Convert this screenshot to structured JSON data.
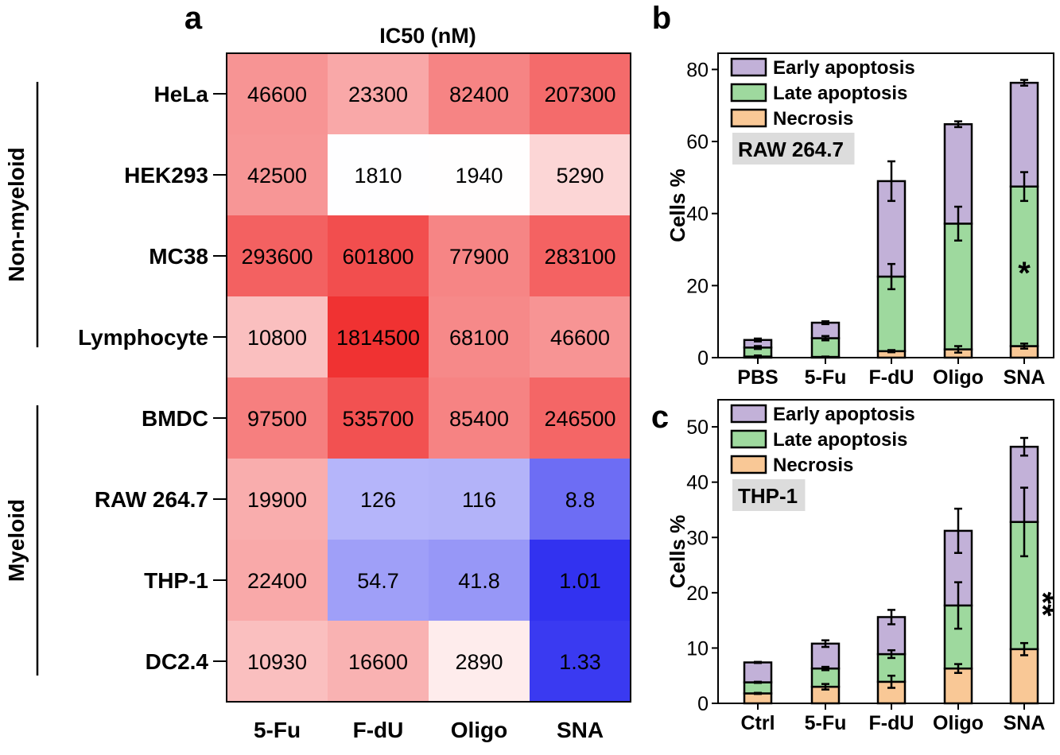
{
  "chart_data": [
    {
      "panel": "a",
      "type": "heatmap",
      "title": "IC50 (nM)",
      "columns": [
        "5-Fu",
        "F-dU",
        "Oligo",
        "SNA"
      ],
      "rows": [
        "HeLa",
        "HEK293",
        "MC38",
        "Lymphocyte",
        "BMDC",
        "RAW 264.7",
        "THP-1",
        "DC2.4"
      ],
      "groups": [
        {
          "label": "Non-myeloid",
          "rows": [
            "HeLa",
            "HEK293",
            "MC38",
            "Lymphocyte"
          ]
        },
        {
          "label": "Myeloid",
          "rows": [
            "BMDC",
            "RAW 264.7",
            "THP-1",
            "DC2.4"
          ]
        }
      ],
      "values": [
        [
          "46600",
          "23300",
          "82400",
          "207300"
        ],
        [
          "42500",
          "1810",
          "1940",
          "5290"
        ],
        [
          "293600",
          "601800",
          "77900",
          "283100"
        ],
        [
          "10800",
          "1814500",
          "68100",
          "46600"
        ],
        [
          "97500",
          "535700",
          "85400",
          "246500"
        ],
        [
          "19900",
          "126",
          "116",
          "8.8"
        ],
        [
          "22400",
          "54.7",
          "41.8",
          "1.01"
        ],
        [
          "10930",
          "16600",
          "2890",
          "1.33"
        ]
      ],
      "color_scale": {
        "high": "#f03232",
        "mid": "#ffffff",
        "low": "#3232f0",
        "scale": "log"
      }
    },
    {
      "panel": "b",
      "type": "bar",
      "stacked": true,
      "annotation": "RAW 264.7",
      "ylabel": "Cells %",
      "ylim": [
        0,
        84.5
      ],
      "yticks": [
        "0",
        "20",
        "40",
        "60",
        "80"
      ],
      "categories": [
        "PBS",
        "5-Fu",
        "F-dU",
        "Oligo",
        "SNA"
      ],
      "series": [
        {
          "name": "Necrosis",
          "color": "#f9c896",
          "values": [
            0.3,
            0.2,
            1.8,
            2.3,
            3.2
          ],
          "errors": [
            0.3,
            0.1,
            0.3,
            0.9,
            0.7
          ]
        },
        {
          "name": "Late apoptosis",
          "color": "#9ed99e",
          "values": [
            2.5,
            5.2,
            20.7,
            34.9,
            44.3
          ],
          "errors": [
            0.4,
            0.6,
            3.5,
            4.7,
            4.0
          ]
        },
        {
          "name": "Early apoptosis",
          "color": "#c2b1d8",
          "values": [
            2.1,
            4.3,
            26.5,
            27.6,
            28.8
          ],
          "errors": [
            0.4,
            0.4,
            5.5,
            0.8,
            0.8
          ]
        }
      ],
      "significance": [
        {
          "category": "SNA",
          "label": "*"
        }
      ],
      "legend": "top-left"
    },
    {
      "panel": "c",
      "type": "bar",
      "stacked": true,
      "annotation": "THP-1",
      "ylabel": "Cells %",
      "ylim": [
        0,
        54.9
      ],
      "yticks": [
        "0",
        "10",
        "20",
        "30",
        "40",
        "50"
      ],
      "categories": [
        "Ctrl",
        "5-Fu",
        "F-dU",
        "Oligo",
        "SNA"
      ],
      "series": [
        {
          "name": "Necrosis",
          "color": "#f9c896",
          "values": [
            1.8,
            3.0,
            3.9,
            6.3,
            9.8
          ],
          "errors": [
            0.1,
            0.5,
            1.1,
            0.8,
            1.1
          ]
        },
        {
          "name": "Late apoptosis",
          "color": "#9ed99e",
          "values": [
            2.0,
            3.3,
            5.0,
            11.4,
            23.0
          ],
          "errors": [
            0.1,
            0.3,
            0.7,
            4.2,
            6.2
          ]
        },
        {
          "name": "Early apoptosis",
          "color": "#c2b1d8",
          "values": [
            3.6,
            4.5,
            6.7,
            13.5,
            13.6
          ],
          "errors": [
            0.1,
            0.6,
            1.3,
            4.0,
            1.6
          ]
        }
      ],
      "significance": [
        {
          "category": "SNA",
          "label": "**"
        }
      ],
      "legend": "top-left"
    }
  ]
}
